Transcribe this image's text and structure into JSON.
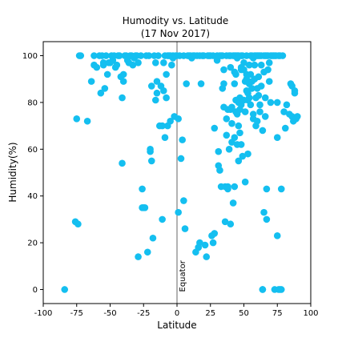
{
  "chart_data": {
    "type": "scatter",
    "title_line1": "Humodity vs. Latitude",
    "title_line2": "(17 Nov 2017)",
    "xlabel": "Latitude",
    "ylabel": "Humidity(%)",
    "xlim": [
      -100,
      100
    ],
    "ylim": [
      -6,
      106
    ],
    "xticks": [
      -100,
      -75,
      -50,
      -25,
      0,
      25,
      50,
      75,
      100
    ],
    "yticks": [
      0,
      20,
      40,
      60,
      80,
      100
    ],
    "grid": false,
    "marker_color": "#14bff0",
    "reference_line": {
      "x": 0,
      "label": "Equator",
      "color": "#808080"
    },
    "points": [
      [
        -84,
        0
      ],
      [
        -76,
        29
      ],
      [
        -74,
        28
      ],
      [
        -75,
        73
      ],
      [
        -73,
        100
      ],
      [
        -72,
        100
      ],
      [
        -67,
        72
      ],
      [
        -64,
        89
      ],
      [
        -62,
        100
      ],
      [
        -62,
        96
      ],
      [
        -60,
        95
      ],
      [
        -58,
        100
      ],
      [
        -57,
        84
      ],
      [
        -56,
        100
      ],
      [
        -55,
        97
      ],
      [
        -55,
        96
      ],
      [
        -54,
        86
      ],
      [
        -53,
        100
      ],
      [
        -52,
        92
      ],
      [
        -51,
        97
      ],
      [
        -50,
        97
      ],
      [
        -49,
        100
      ],
      [
        -48,
        98
      ],
      [
        -47,
        100
      ],
      [
        -46,
        95
      ],
      [
        -45,
        96
      ],
      [
        -44,
        100
      ],
      [
        -43,
        100
      ],
      [
        -42,
        91
      ],
      [
        -41,
        82
      ],
      [
        -41,
        54
      ],
      [
        -40,
        92
      ],
      [
        -40,
        89
      ],
      [
        -39,
        100
      ],
      [
        -38,
        100
      ],
      [
        -37,
        98
      ],
      [
        -36,
        97
      ],
      [
        -35,
        100
      ],
      [
        -34,
        100
      ],
      [
        -33,
        96
      ],
      [
        -32,
        99
      ],
      [
        -31,
        100
      ],
      [
        -30,
        100
      ],
      [
        -29,
        97
      ],
      [
        -29,
        14
      ],
      [
        -27,
        100
      ],
      [
        -26,
        43
      ],
      [
        -26,
        35
      ],
      [
        -25,
        35
      ],
      [
        -24,
        35
      ],
      [
        -23,
        100
      ],
      [
        -22,
        16
      ],
      [
        -21,
        100
      ],
      [
        -20,
        60
      ],
      [
        -20,
        59
      ],
      [
        -19,
        87
      ],
      [
        -19,
        55
      ],
      [
        -18,
        22
      ],
      [
        -17,
        100
      ],
      [
        -16,
        97
      ],
      [
        -16,
        81
      ],
      [
        -15,
        84
      ],
      [
        -15,
        89
      ],
      [
        -14,
        100
      ],
      [
        -13,
        70
      ],
      [
        -12,
        87
      ],
      [
        -11,
        30
      ],
      [
        -11,
        70
      ],
      [
        -10,
        97
      ],
      [
        -10,
        85
      ],
      [
        -9,
        65
      ],
      [
        -9,
        100
      ],
      [
        -8,
        82
      ],
      [
        -8,
        92
      ],
      [
        -7,
        70
      ],
      [
        -7,
        100
      ],
      [
        -6,
        100
      ],
      [
        -5,
        72
      ],
      [
        -5,
        100
      ],
      [
        -4,
        96
      ],
      [
        -3,
        100
      ],
      [
        -3,
        99
      ],
      [
        -2,
        74
      ],
      [
        -1,
        100
      ],
      [
        0,
        100
      ],
      [
        1,
        73
      ],
      [
        1,
        33
      ],
      [
        2,
        100
      ],
      [
        3,
        56
      ],
      [
        4,
        64
      ],
      [
        5,
        100
      ],
      [
        5,
        38
      ],
      [
        6,
        26
      ],
      [
        7,
        88
      ],
      [
        8,
        100
      ],
      [
        9,
        100
      ],
      [
        10,
        100
      ],
      [
        11,
        99
      ],
      [
        12,
        100
      ],
      [
        13,
        100
      ],
      [
        14,
        16
      ],
      [
        15,
        100
      ],
      [
        16,
        18
      ],
      [
        16,
        18
      ],
      [
        17,
        20
      ],
      [
        17,
        100
      ],
      [
        18,
        88
      ],
      [
        19,
        100
      ],
      [
        20,
        100
      ],
      [
        21,
        19
      ],
      [
        22,
        14
      ],
      [
        23,
        100
      ],
      [
        24,
        100
      ],
      [
        25,
        100
      ],
      [
        26,
        23
      ],
      [
        27,
        100
      ],
      [
        27,
        20
      ],
      [
        28,
        69
      ],
      [
        28,
        24
      ],
      [
        30,
        100
      ],
      [
        30,
        98
      ],
      [
        31,
        59
      ],
      [
        31,
        53
      ],
      [
        32,
        51
      ],
      [
        32,
        100
      ],
      [
        33,
        100
      ],
      [
        33,
        44
      ],
      [
        34,
        100
      ],
      [
        34,
        86
      ],
      [
        35,
        88
      ],
      [
        35,
        78
      ],
      [
        35,
        94
      ],
      [
        36,
        29
      ],
      [
        36,
        44
      ],
      [
        37,
        100
      ],
      [
        37,
        73
      ],
      [
        37,
        66
      ],
      [
        38,
        77
      ],
      [
        38,
        43
      ],
      [
        38,
        44
      ],
      [
        39,
        60
      ],
      [
        39,
        100
      ],
      [
        40,
        95
      ],
      [
        40,
        77
      ],
      [
        40,
        100
      ],
      [
        40,
        28
      ],
      [
        41,
        78
      ],
      [
        41,
        71
      ],
      [
        41,
        63
      ],
      [
        42,
        37
      ],
      [
        42,
        100
      ],
      [
        43,
        65
      ],
      [
        43,
        44
      ],
      [
        43,
        93
      ],
      [
        43,
        88
      ],
      [
        43,
        100
      ],
      [
        44,
        100
      ],
      [
        44,
        92
      ],
      [
        44,
        81
      ],
      [
        44,
        76
      ],
      [
        45,
        100
      ],
      [
        45,
        99
      ],
      [
        45,
        75
      ],
      [
        45,
        62
      ],
      [
        46,
        100
      ],
      [
        46,
        80
      ],
      [
        46,
        70
      ],
      [
        46,
        55
      ],
      [
        47,
        82
      ],
      [
        47,
        67
      ],
      [
        47,
        77
      ],
      [
        48,
        95
      ],
      [
        48,
        94
      ],
      [
        48,
        79
      ],
      [
        48,
        100
      ],
      [
        48,
        62
      ],
      [
        49,
        100
      ],
      [
        49,
        57
      ],
      [
        50,
        97
      ],
      [
        50,
        94
      ],
      [
        50,
        81
      ],
      [
        51,
        46
      ],
      [
        51,
        89
      ],
      [
        51,
        76
      ],
      [
        52,
        100
      ],
      [
        52,
        92
      ],
      [
        52,
        90
      ],
      [
        52,
        85
      ],
      [
        53,
        84
      ],
      [
        53,
        81
      ],
      [
        53,
        58
      ],
      [
        54,
        96
      ],
      [
        54,
        88
      ],
      [
        54,
        82
      ],
      [
        55,
        100
      ],
      [
        55,
        92
      ],
      [
        55,
        79
      ],
      [
        56,
        100
      ],
      [
        56,
        89
      ],
      [
        56,
        86
      ],
      [
        57,
        99
      ],
      [
        57,
        75
      ],
      [
        57,
        73
      ],
      [
        58,
        100
      ],
      [
        58,
        96
      ],
      [
        58,
        90
      ],
      [
        59,
        100
      ],
      [
        59,
        82
      ],
      [
        59,
        70
      ],
      [
        60,
        100
      ],
      [
        60,
        86
      ],
      [
        60,
        72
      ],
      [
        61,
        100
      ],
      [
        61,
        91
      ],
      [
        61,
        83
      ],
      [
        62,
        100
      ],
      [
        62,
        79
      ],
      [
        62,
        76
      ],
      [
        63,
        100
      ],
      [
        63,
        96
      ],
      [
        63,
        87
      ],
      [
        64,
        68
      ],
      [
        64,
        0
      ],
      [
        64,
        0
      ],
      [
        65,
        33
      ],
      [
        65,
        100
      ],
      [
        65,
        93
      ],
      [
        66,
        100
      ],
      [
        66,
        82
      ],
      [
        66,
        74
      ],
      [
        67,
        43
      ],
      [
        67,
        30
      ],
      [
        67,
        100
      ],
      [
        68,
        100
      ],
      [
        68,
        94
      ],
      [
        69,
        97
      ],
      [
        69,
        89
      ],
      [
        70,
        100
      ],
      [
        70,
        80
      ],
      [
        71,
        100
      ],
      [
        72,
        100
      ],
      [
        73,
        100
      ],
      [
        73,
        0
      ],
      [
        74,
        100
      ],
      [
        75,
        80
      ],
      [
        75,
        65
      ],
      [
        75,
        23
      ],
      [
        76,
        100
      ],
      [
        76,
        0
      ],
      [
        77,
        100
      ],
      [
        77,
        0
      ],
      [
        78,
        43
      ],
      [
        78,
        0
      ],
      [
        79,
        100
      ],
      [
        80,
        76
      ],
      [
        81,
        69
      ],
      [
        82,
        79
      ],
      [
        84,
        75
      ],
      [
        85,
        88
      ],
      [
        86,
        87
      ],
      [
        86,
        74
      ],
      [
        87,
        72
      ],
      [
        88,
        85
      ],
      [
        88,
        84
      ],
      [
        89,
        73
      ],
      [
        90,
        74
      ]
    ]
  }
}
